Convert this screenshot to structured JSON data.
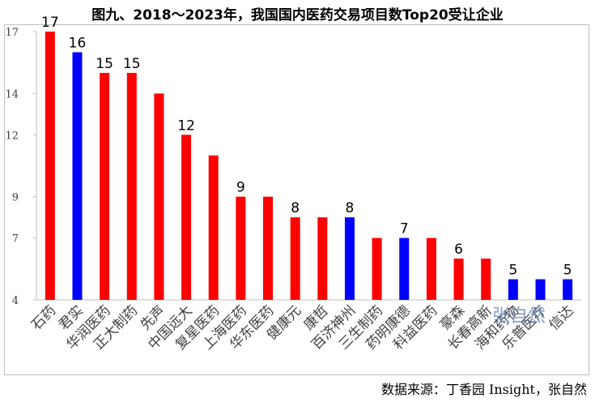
{
  "chart_data": {
    "type": "bar",
    "title": "图九、2018～2023年，我国国内医药交易项目数Top20受让企业",
    "categories": [
      "石药",
      "君实",
      "华润医药",
      "正大制药",
      "先声",
      "中国远大",
      "复星医药",
      "上海医药",
      "华东医药",
      "健康元",
      "康哲",
      "百济神州",
      "三生制药",
      "药明康德",
      "科益医药",
      "豪森",
      "长春高新",
      "海和药物",
      "乐普医疗",
      "信达"
    ],
    "values": [
      17,
      16,
      15,
      15,
      14,
      12,
      11,
      9,
      9,
      8,
      8,
      8,
      7,
      7,
      7,
      6,
      6,
      5,
      5,
      5
    ],
    "bar_colors": [
      "#ff0000",
      "#0000ff",
      "#ff0000",
      "#ff0000",
      "#ff0000",
      "#ff0000",
      "#ff0000",
      "#ff0000",
      "#ff0000",
      "#ff0000",
      "#ff0000",
      "#0000ff",
      "#ff0000",
      "#0000ff",
      "#ff0000",
      "#ff0000",
      "#ff0000",
      "#0000ff",
      "#0000ff",
      "#0000ff"
    ],
    "data_labels": [
      "17",
      "16",
      "15",
      "15",
      "",
      "12",
      "",
      "9",
      "",
      "8",
      "",
      "8",
      "",
      "7",
      "",
      "6",
      "",
      "5",
      "",
      "5"
    ],
    "ylim": [
      4,
      17
    ],
    "yticks": [
      4,
      7,
      9,
      12,
      14,
      17
    ],
    "xlabel": "",
    "ylabel": ""
  },
  "source": "数据来源：丁香园 Insight，张自然",
  "watermark": "张自然"
}
